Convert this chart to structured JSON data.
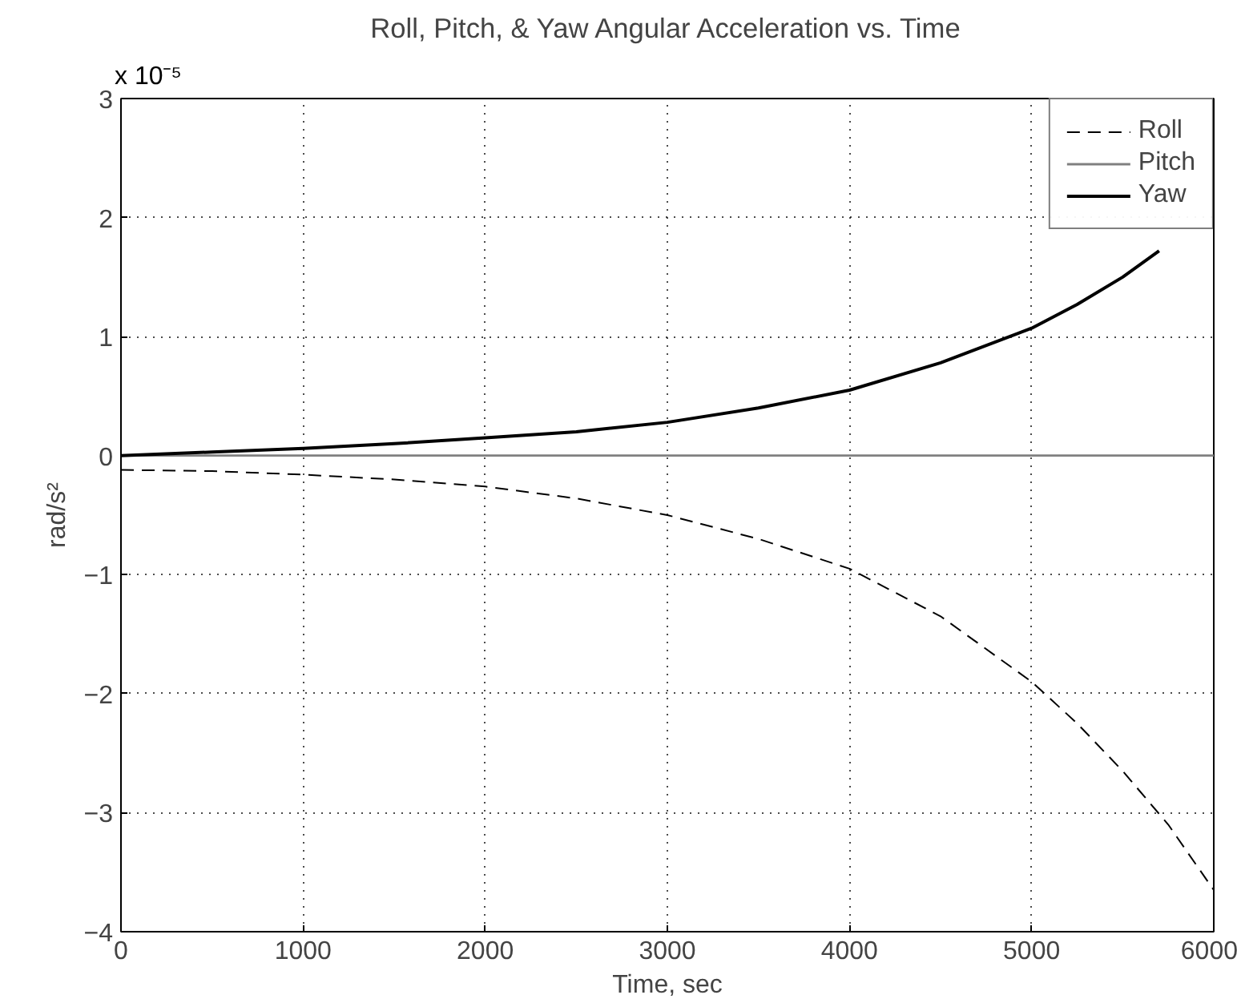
{
  "chart_data": {
    "type": "line",
    "title": "Roll, Pitch, & Yaw Angular Acceleration vs. Time",
    "xlabel": "Time, sec",
    "ylabel": "rad/s²",
    "annotations": [
      "x 10⁻⁵"
    ],
    "xlim": [
      0,
      6000
    ],
    "xticks": [
      0,
      1000,
      2000,
      3000,
      4000,
      5000,
      6000
    ],
    "ylim": [
      -4,
      3
    ],
    "yticks": [
      -4,
      -3,
      -2,
      -1,
      0,
      1,
      2,
      3
    ],
    "grid": true,
    "legend": "top right",
    "series": [
      {
        "name": "Roll",
        "color": "#000000",
        "line_style": "dashed",
        "x": [
          0,
          500,
          1000,
          1500,
          2000,
          2500,
          3000,
          3500,
          4000,
          4500,
          5000,
          5250,
          5500,
          5750,
          6000
        ],
        "values": [
          -0.12,
          -0.13,
          -0.16,
          -0.2,
          -0.26,
          -0.36,
          -0.5,
          -0.7,
          -0.95,
          -1.35,
          -1.9,
          -2.25,
          -2.65,
          -3.1,
          -3.65
        ]
      },
      {
        "name": "Pitch",
        "color": "#808080",
        "line_style": "solid",
        "x": [
          0,
          6000
        ],
        "values": [
          0,
          0
        ]
      },
      {
        "name": "Yaw",
        "color": "#000000",
        "line_style": "solid",
        "x": [
          0,
          500,
          1000,
          1500,
          2000,
          2500,
          3000,
          3500,
          4000,
          4500,
          5000,
          5250,
          5500,
          5700
        ],
        "values": [
          0,
          0.03,
          0.06,
          0.1,
          0.15,
          0.2,
          0.28,
          0.4,
          0.55,
          0.78,
          1.07,
          1.27,
          1.5,
          1.72
        ]
      }
    ]
  }
}
